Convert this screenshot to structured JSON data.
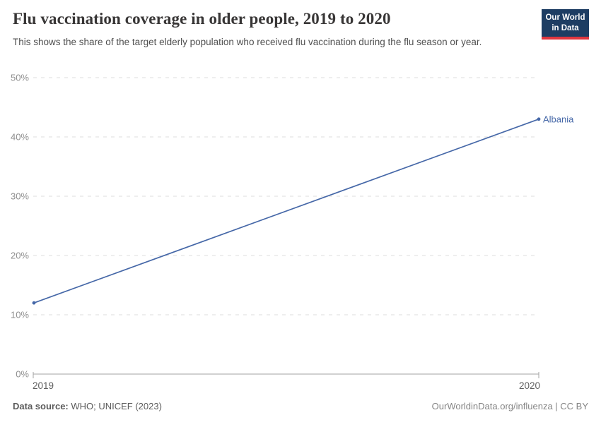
{
  "header": {
    "title": "Flu vaccination coverage in older people, 2019 to 2020",
    "subtitle": "This shows the share of the target elderly population who received flu vaccination during the flu season or year.",
    "logo": {
      "line1": "Our World",
      "line2": "in Data"
    }
  },
  "chart_data": {
    "type": "line",
    "x": [
      2019,
      2020
    ],
    "series": [
      {
        "name": "Albania",
        "values": [
          12,
          43
        ],
        "color": "#4668a8"
      }
    ],
    "title": "Flu vaccination coverage in older people, 2019 to 2020",
    "xlabel": "",
    "ylabel": "",
    "ylim": [
      0,
      50
    ],
    "yticks": [
      0,
      10,
      20,
      30,
      40,
      50
    ],
    "ytick_suffix": "%",
    "xticks": [
      "2019",
      "2020"
    ],
    "grid": "horizontal-dashed",
    "legend_position": "end-of-line-label"
  },
  "footer": {
    "source_label": "Data source:",
    "source_value": " WHO; UNICEF (2023)",
    "license": "OurWorldinData.org/influenza | CC BY"
  },
  "colors": {
    "series_blue": "#4668a8",
    "gridline": "#dcdcdc",
    "axis": "#a3a3a3",
    "ytick_label": "#8f8f8f",
    "xtick_label": "#5f5f5f",
    "title": "#383636",
    "subtitle": "#4f4f4f",
    "logo_bg": "#1d3d63",
    "logo_stripe": "#e0363f"
  }
}
